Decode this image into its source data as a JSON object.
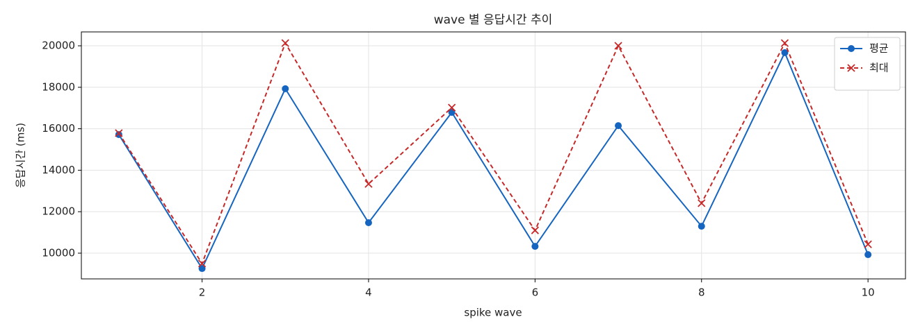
{
  "chart_data": {
    "type": "line",
    "title": "wave 별 응답시간 추이",
    "x_label": "spike wave",
    "y_label": "응답시간 (ms)",
    "x": [
      1,
      2,
      3,
      4,
      5,
      6,
      7,
      8,
      9,
      10
    ],
    "series": [
      {
        "name": "평균",
        "color": "#1565c0",
        "marker": "o",
        "dash": false,
        "values": [
          15720,
          9260,
          17930,
          11470,
          16790,
          10330,
          16150,
          11300,
          19670,
          9930
        ]
      },
      {
        "name": "최대",
        "color": "#c62828",
        "marker": "x",
        "dash": true,
        "values": [
          15790,
          9500,
          20130,
          13340,
          17020,
          11100,
          20000,
          12410,
          20130,
          10430
        ]
      }
    ],
    "xlim": [
      0.55,
      10.45
    ],
    "xticks": [
      2,
      4,
      6,
      8,
      10
    ],
    "ylim": [
      8760,
      20670
    ],
    "yticks": [
      10000,
      12000,
      14000,
      16000,
      18000,
      20000
    ],
    "grid": true,
    "legend": "upper right"
  }
}
